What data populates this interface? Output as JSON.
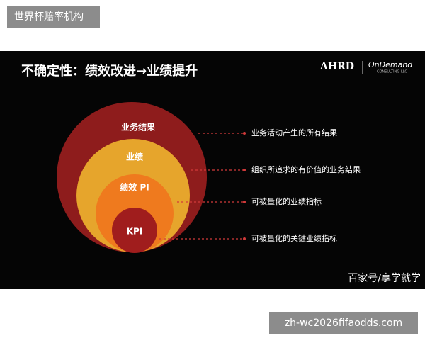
{
  "header": {
    "label": "世界杯赔率机构"
  },
  "slide": {
    "title": "不确定性：绩效改进→业绩提升",
    "logos": [
      "AHRD",
      "OnDemand",
      "CONSULTING LLC"
    ],
    "circles": [
      "业务结果",
      "业绩",
      "绩效 PI",
      "KPI"
    ],
    "descriptions": [
      "业务活动产生的所有结果",
      "组织所追求的有价值的业务结果",
      "可被量化的业绩指标",
      "可被量化的关键业绩指标"
    ],
    "watermark": "百家号/享学就学"
  },
  "footer": {
    "url": "zh-wc2026fifaodds.com"
  }
}
